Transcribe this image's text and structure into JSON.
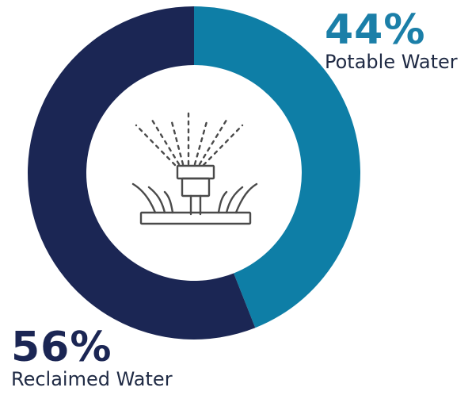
{
  "chart_data": {
    "type": "pie",
    "style": "donut",
    "segments": [
      {
        "label": "Potable Water",
        "value": 44,
        "display": "44%",
        "color": "#0e7ea6"
      },
      {
        "label": "Reclaimed Water",
        "value": 56,
        "display": "56%",
        "color": "#1b2654"
      }
    ],
    "title": "",
    "legend": "none",
    "center_icon": "sprinkler-icon"
  }
}
